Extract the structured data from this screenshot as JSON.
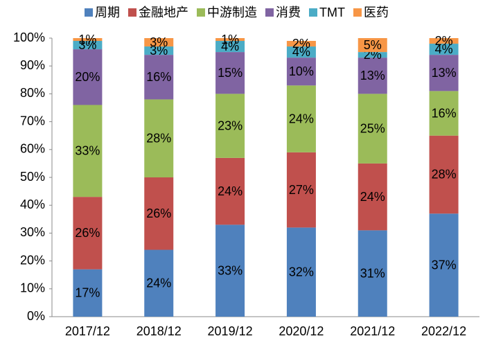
{
  "chart_data": {
    "type": "stacked-bar",
    "categories": [
      "2017/12",
      "2018/12",
      "2019/12",
      "2020/12",
      "2021/12",
      "2022/12"
    ],
    "series": [
      {
        "name": "周期",
        "color": "#4f81bd",
        "values": [
          17,
          24,
          33,
          32,
          31,
          37
        ],
        "value_labels": [
          "17%",
          "24%",
          "33%",
          "32%",
          "31%",
          "37%"
        ]
      },
      {
        "name": "金融地产",
        "color": "#c0504d",
        "values": [
          26,
          26,
          24,
          27,
          24,
          28
        ],
        "value_labels": [
          "26%",
          "26%",
          "24%",
          "27%",
          "24%",
          "28%"
        ]
      },
      {
        "name": "中游制造",
        "color": "#9bbb59",
        "values": [
          33,
          28,
          23,
          24,
          25,
          16
        ],
        "value_labels": [
          "33%",
          "28%",
          "23%",
          "24%",
          "25%",
          "16%"
        ]
      },
      {
        "name": "消费",
        "color": "#8064a2",
        "values": [
          20,
          16,
          15,
          10,
          13,
          13
        ],
        "value_labels": [
          "20%",
          "16%",
          "15%",
          "10%",
          "13%",
          "13%"
        ]
      },
      {
        "name": "TMT",
        "color": "#4bacc6",
        "values": [
          3,
          3,
          4,
          4,
          2,
          4
        ],
        "value_labels": [
          "3%",
          "3%",
          "4%",
          "4%",
          "2%",
          "4%"
        ]
      },
      {
        "name": "医药",
        "color": "#f79646",
        "values": [
          1,
          3,
          1,
          2,
          5,
          2
        ],
        "value_labels": [
          "1%",
          "3%",
          "1%",
          "2%",
          "5%",
          "2%"
        ]
      }
    ],
    "ylim": [
      0,
      100
    ],
    "yticks": [
      {
        "value": 0,
        "label": "0%"
      },
      {
        "value": 10,
        "label": "10%"
      },
      {
        "value": 20,
        "label": "20%"
      },
      {
        "value": 30,
        "label": "30%"
      },
      {
        "value": 40,
        "label": "40%"
      },
      {
        "value": 50,
        "label": "50%"
      },
      {
        "value": 60,
        "label": "60%"
      },
      {
        "value": 70,
        "label": "70%"
      },
      {
        "value": 80,
        "label": "80%"
      },
      {
        "value": 90,
        "label": "90%"
      },
      {
        "value": 100,
        "label": "100%"
      }
    ],
    "grid": false
  }
}
